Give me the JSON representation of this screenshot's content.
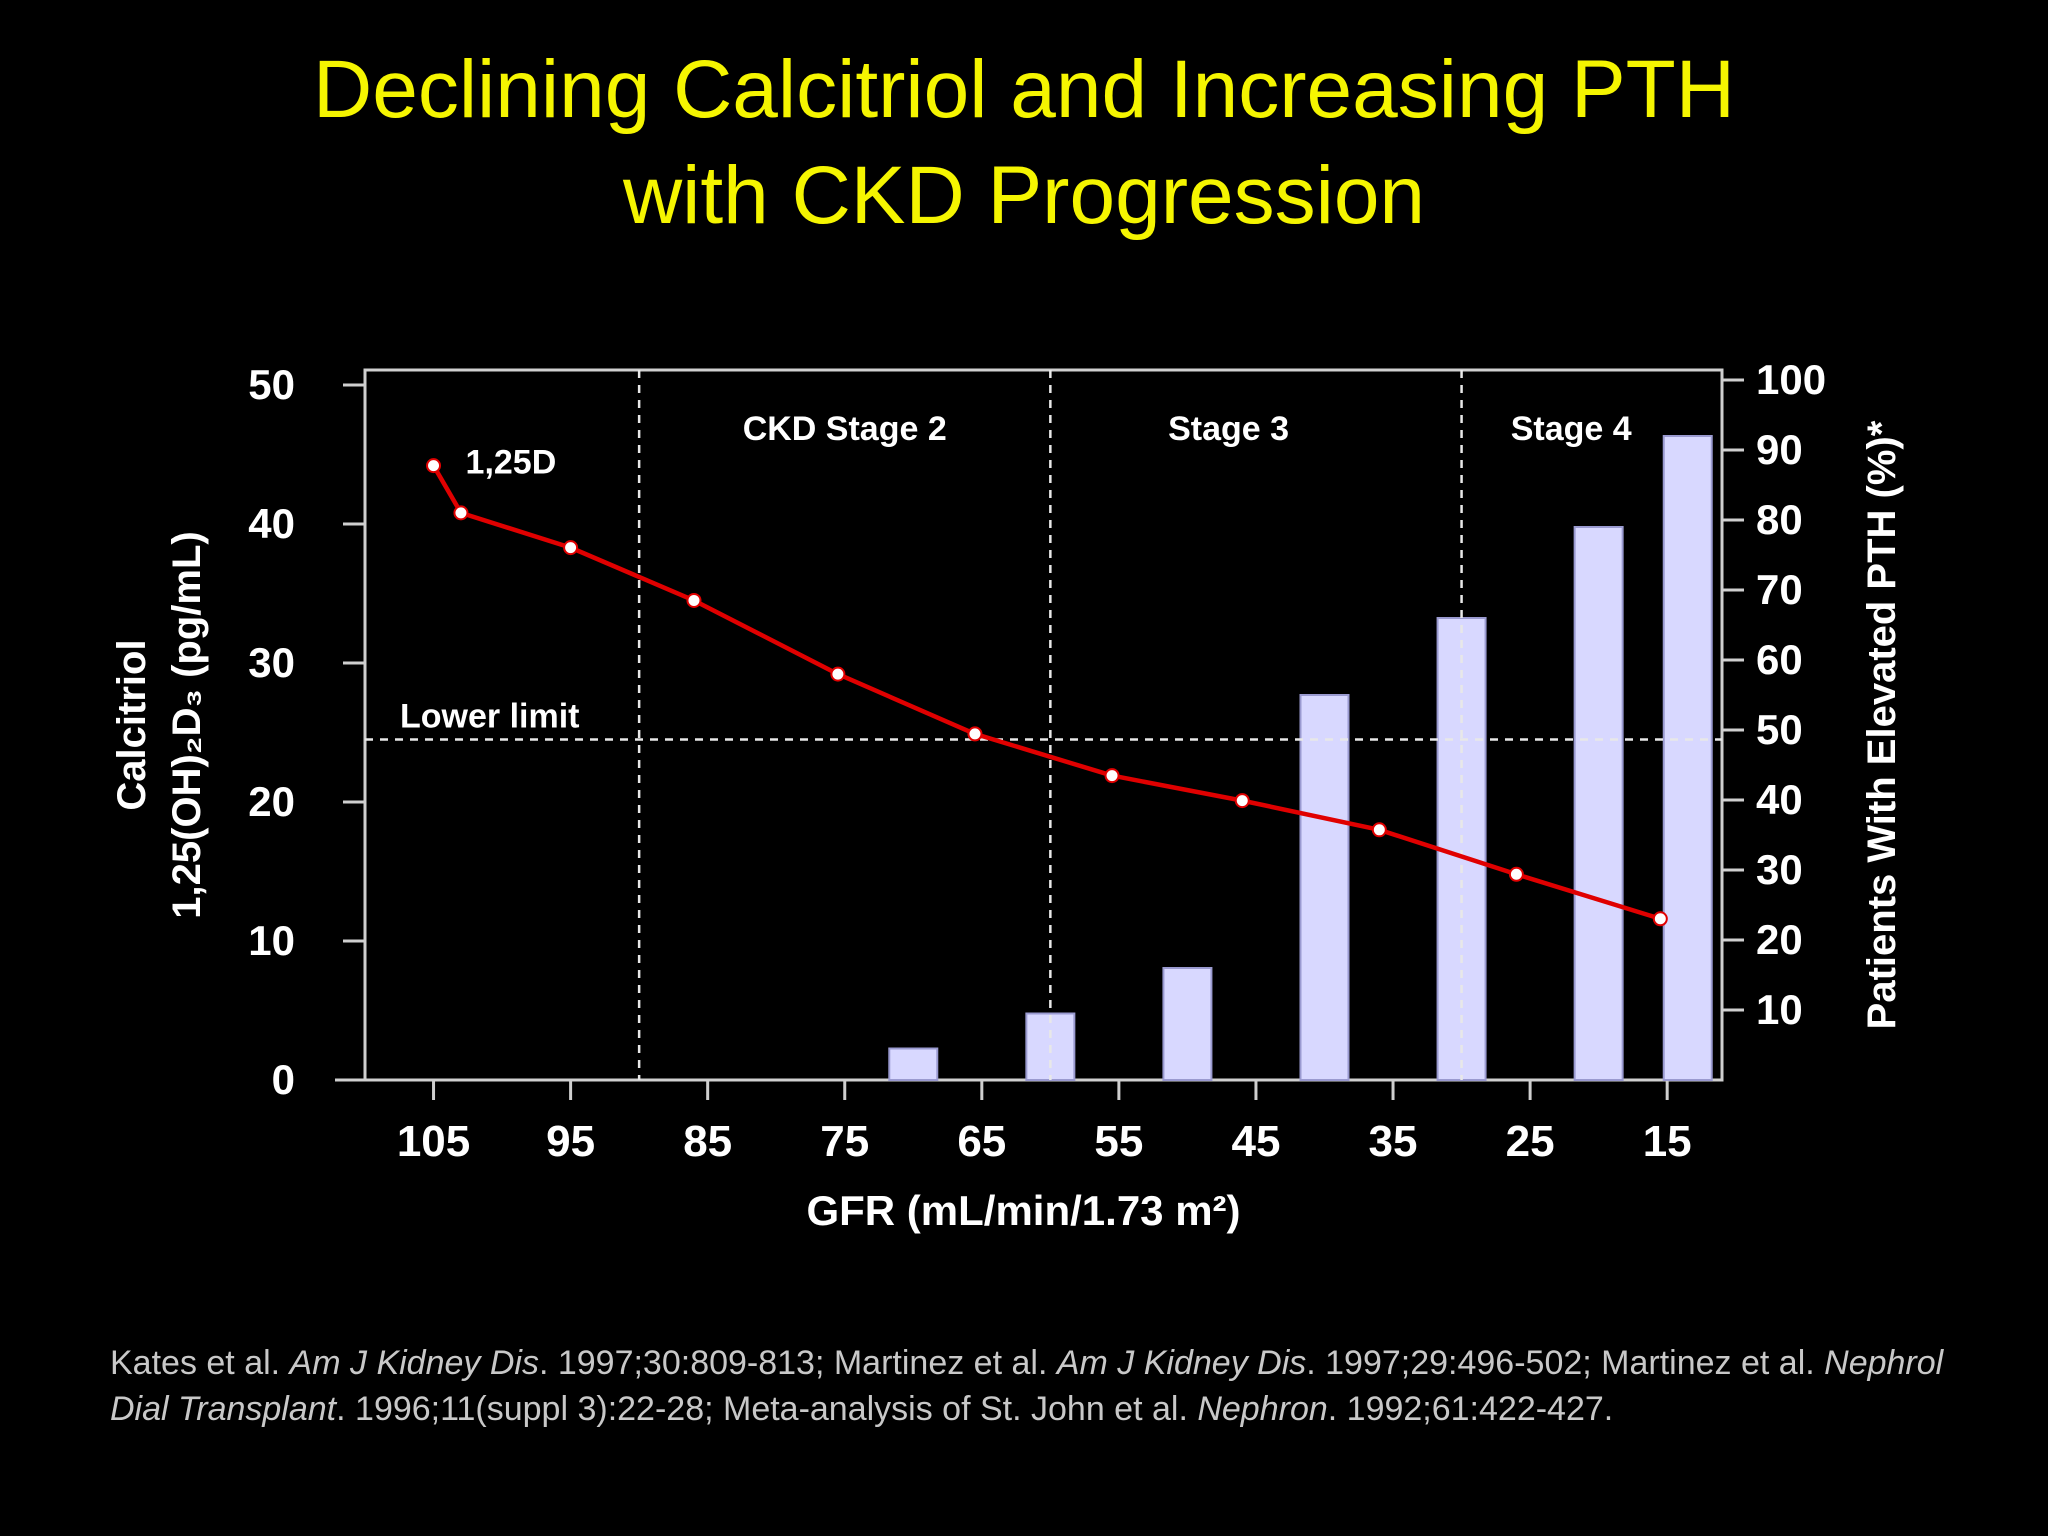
{
  "title_line1": "Declining Calcitriol and Increasing PTH",
  "title_line2": "with CKD Progression",
  "chart_data": {
    "type": "bar+line",
    "xlabel": "GFR (mL/min/1.73 m²)",
    "x_ticks": [
      105,
      95,
      85,
      75,
      65,
      55,
      45,
      35,
      25,
      15
    ],
    "xlim": [
      110,
      11
    ],
    "ylabel_left_line1": "Calcitriol",
    "ylabel_left_line2": "1,25(OH)₂D₃ (pg/mL)",
    "ylim_left": [
      0,
      50
    ],
    "yticks_left": [
      0,
      10,
      20,
      30,
      40,
      50
    ],
    "ylabel_right": "Patients With Elevated PTH (%)*",
    "ylim_right": [
      0,
      100
    ],
    "yticks_right": [
      10,
      20,
      30,
      40,
      50,
      60,
      70,
      80,
      90,
      100
    ],
    "line_series": {
      "name": "1,25D",
      "label": "1,25D",
      "color": "#e00000",
      "points": [
        {
          "gfr": 105,
          "value": 44.2
        },
        {
          "gfr": 103,
          "value": 40.8
        },
        {
          "gfr": 95,
          "value": 38.3
        },
        {
          "gfr": 86,
          "value": 34.5
        },
        {
          "gfr": 75.5,
          "value": 29.2
        },
        {
          "gfr": 65.5,
          "value": 24.9
        },
        {
          "gfr": 55.5,
          "value": 21.9
        },
        {
          "gfr": 46,
          "value": 20.1
        },
        {
          "gfr": 36,
          "value": 18.0
        },
        {
          "gfr": 26,
          "value": 14.8
        },
        {
          "gfr": 15.5,
          "value": 11.6
        }
      ]
    },
    "bar_series": {
      "name": "Patients With Elevated PTH (%)",
      "color": "#d8d8ff",
      "bars": [
        {
          "gfr": 70,
          "value": 4.5
        },
        {
          "gfr": 60,
          "value": 9.5
        },
        {
          "gfr": 50,
          "value": 16
        },
        {
          "gfr": 40,
          "value": 55
        },
        {
          "gfr": 30,
          "value": 66
        },
        {
          "gfr": 20,
          "value": 79
        },
        {
          "gfr": 13.5,
          "value": 92
        }
      ]
    },
    "reference_line": {
      "label": "Lower limit",
      "value": 24.5
    },
    "stage_dividers_gfr": [
      90,
      60,
      30
    ],
    "stage_labels": [
      {
        "text": "CKD Stage 2",
        "gfr": 75
      },
      {
        "text": "Stage 3",
        "gfr": 47
      },
      {
        "text": "Stage 4",
        "gfr": 22
      }
    ]
  },
  "citation": {
    "p1": "Kates et al. ",
    "j1": "Am J Kidney Dis",
    "p2": ". 1997;30:809-813; Martinez et al. ",
    "j2": "Am J Kidney Dis",
    "p3": ". 1997;29:496-502; Martinez et al. ",
    "j3": "Nephrol Dial Transplant",
    "p4": ". 1996;11(suppl 3):22-28; Meta-analysis of St. John et al. ",
    "j4": "Nephron",
    "p5": ". 1992;61:422-427."
  },
  "colors": {
    "title": "#f5f500",
    "line": "#e00000",
    "bar": "#d8d8ff",
    "axis": "#cfcfcf"
  }
}
